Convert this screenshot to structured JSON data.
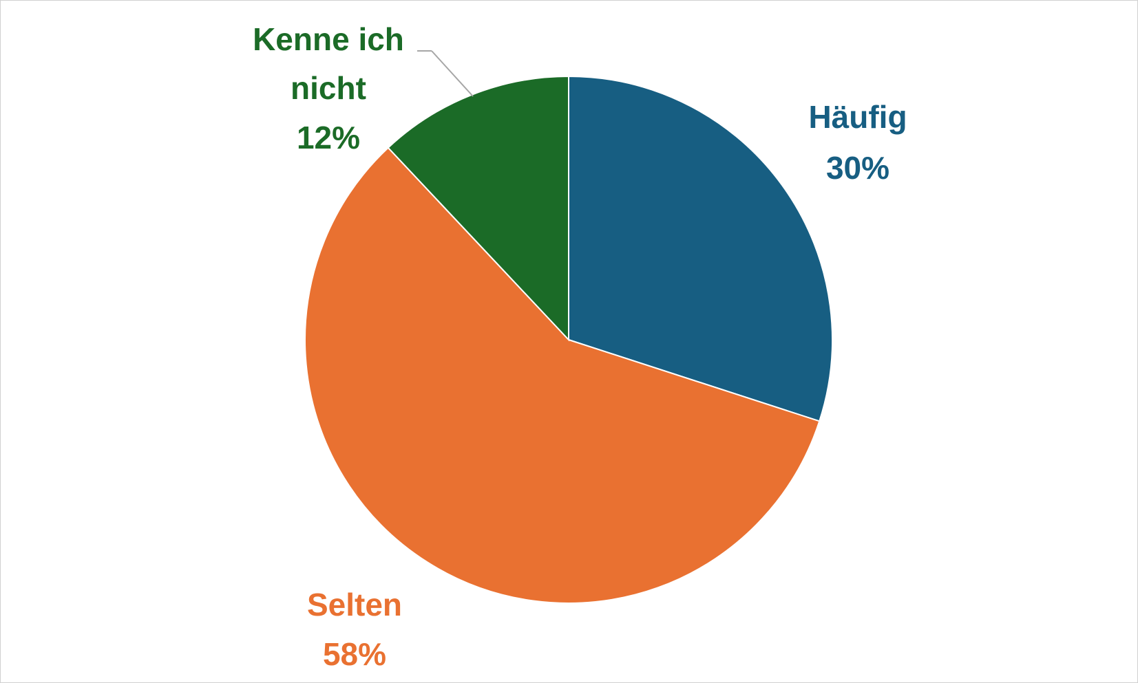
{
  "chart_data": {
    "type": "pie",
    "title": "",
    "slices": [
      {
        "label": "Häufig",
        "value": 30,
        "percent_label": "30%",
        "color": "#175E82"
      },
      {
        "label": "Selten",
        "value": 58,
        "percent_label": "58%",
        "color": "#E97131"
      },
      {
        "label": "Kenne ich nicht",
        "value": 12,
        "percent_label": "12%",
        "color": "#1B6B27"
      }
    ],
    "start_angle_deg": 0,
    "direction": "clockwise",
    "legend": "none",
    "data_labels": "category name and percentage, colored per slice"
  }
}
